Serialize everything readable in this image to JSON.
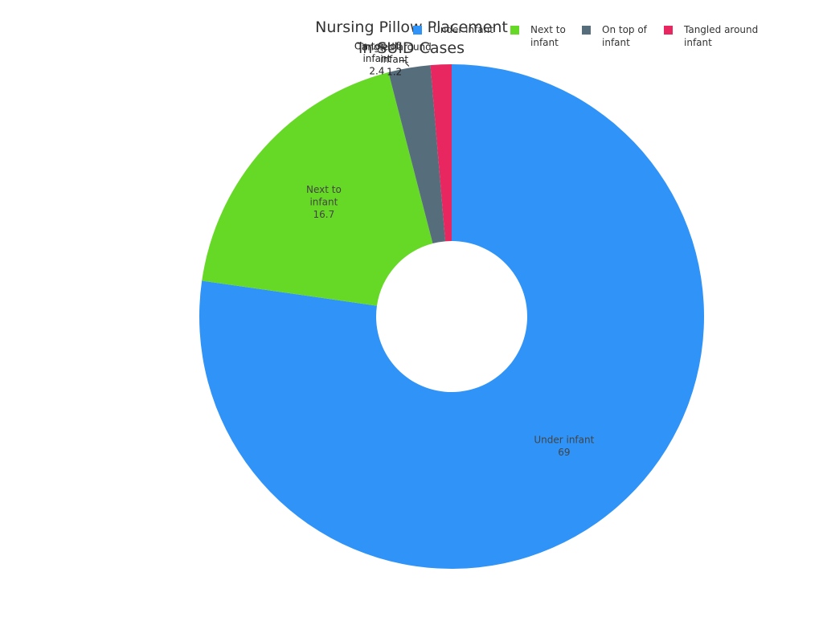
{
  "chart_data": {
    "type": "pie",
    "donut": true,
    "title_lines": [
      "Nursing Pillow Placement",
      "in SUID Cases"
    ],
    "categories": [
      "Under infant",
      "Next to infant",
      "On top of infant",
      "Tangled around infant"
    ],
    "values": [
      69,
      16.7,
      2.4,
      1.2
    ],
    "data_labels": [
      "69",
      "16.7",
      "2.4",
      "1.2"
    ],
    "colors": [
      "#2f93f7",
      "#66d926",
      "#566d7b",
      "#e8265f"
    ],
    "legend": {
      "position": "top-right",
      "entries": [
        {
          "label_lines": [
            "Under infant"
          ],
          "color": "#2f93f7"
        },
        {
          "label_lines": [
            "Next to",
            "infant"
          ],
          "color": "#66d926"
        },
        {
          "label_lines": [
            "On top of",
            "infant"
          ],
          "color": "#566d7b"
        },
        {
          "label_lines": [
            "Tangled around",
            "infant"
          ],
          "color": "#e8265f"
        }
      ]
    },
    "slice_labels": [
      {
        "lines": [
          "Under infant",
          "69"
        ],
        "placement": "inside"
      },
      {
        "lines": [
          "Next to",
          "infant",
          "16.7"
        ],
        "placement": "inside"
      },
      {
        "lines": [
          "On top of",
          "infant",
          "2.4"
        ],
        "placement": "outside"
      },
      {
        "lines": [
          "Tangled around",
          "infant",
          "1.2"
        ],
        "placement": "outside"
      }
    ]
  }
}
